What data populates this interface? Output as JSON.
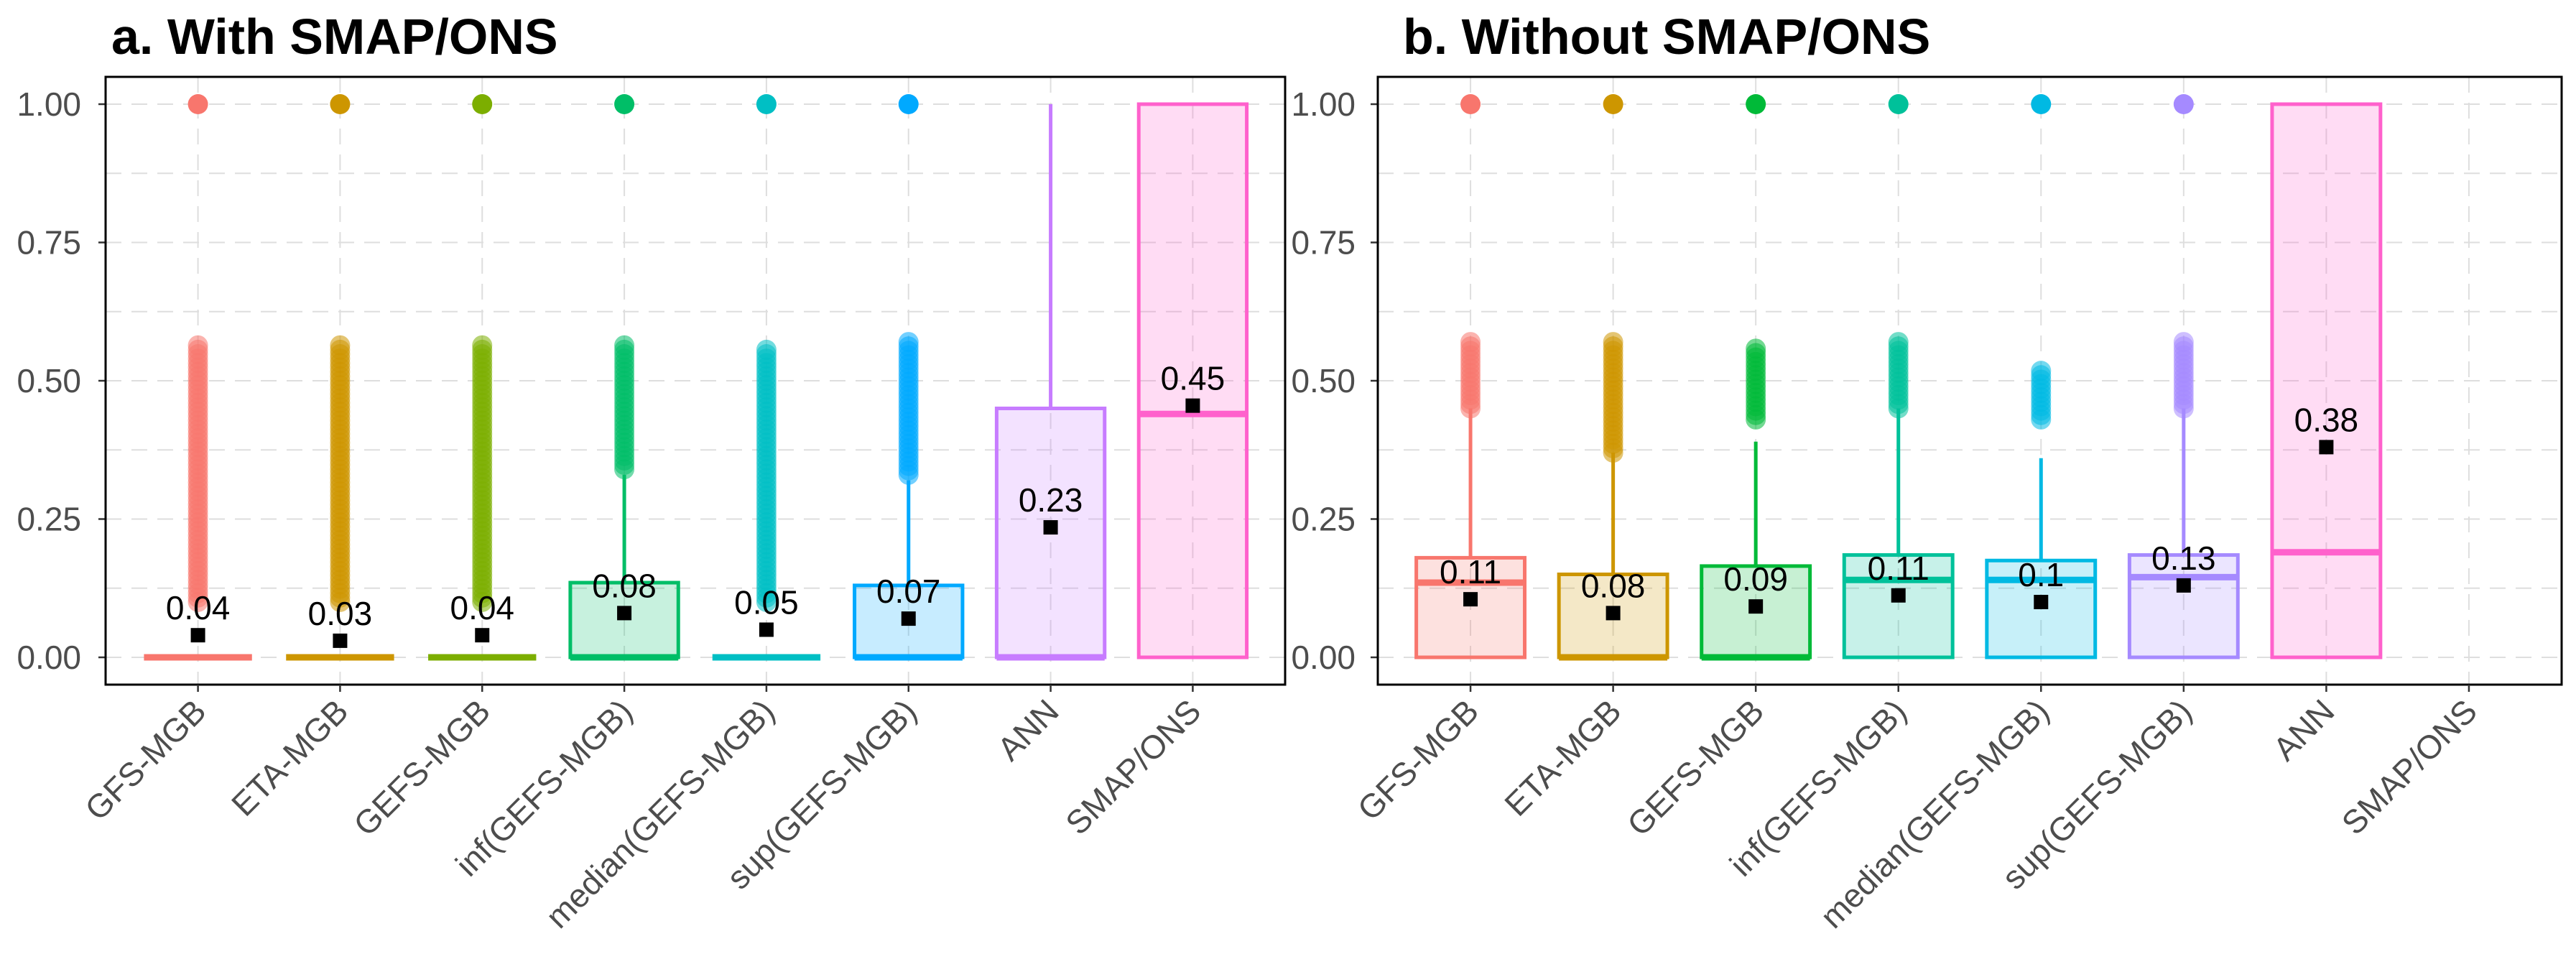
{
  "chart_data": [
    {
      "type": "box",
      "title": "a.  With SMAP/ONS",
      "ylim": [
        -0.05,
        1.05
      ],
      "yticks": [
        "0.00",
        "0.25",
        "0.50",
        "0.75",
        "1.00"
      ],
      "grid": true,
      "categories": [
        "GFS-MGB",
        "ETA-MGB",
        "GEFS-MGB",
        "inf(GEFS-MGB)",
        "median(GEFS-MGB)",
        "sup(GEFS-MGB)",
        "ANN",
        "SMAP/ONS"
      ],
      "colors": [
        "#F8766D",
        "#CD9600",
        "#7CAE00",
        "#00BE67",
        "#00BFC4",
        "#00A9FF",
        "#C77CFF",
        "#FF61CC"
      ],
      "boxes": [
        {
          "q1": 0.0,
          "median": 0.0,
          "q3": 0.0,
          "whisker_low": 0.0,
          "whisker_high": 0.0,
          "outliers_low": 0.1,
          "outliers_high": 0.57,
          "outlier_max": 1.0,
          "mean": 0.04,
          "mean_label": "0.04"
        },
        {
          "q1": 0.0,
          "median": 0.0,
          "q3": 0.0,
          "whisker_low": 0.0,
          "whisker_high": 0.0,
          "outliers_low": 0.1,
          "outliers_high": 0.57,
          "outlier_max": 1.0,
          "mean": 0.03,
          "mean_label": "0.03"
        },
        {
          "q1": 0.0,
          "median": 0.0,
          "q3": 0.0,
          "whisker_low": 0.0,
          "whisker_high": 0.0,
          "outliers_low": 0.1,
          "outliers_high": 0.57,
          "outlier_max": 1.0,
          "mean": 0.04,
          "mean_label": "0.04"
        },
        {
          "q1": 0.0,
          "median": 0.0,
          "q3": 0.135,
          "whisker_low": 0.0,
          "whisker_high": 0.33,
          "outliers_low": 0.34,
          "outliers_high": 0.57,
          "outlier_max": 1.0,
          "mean": 0.08,
          "mean_label": "0.08"
        },
        {
          "q1": 0.0,
          "median": 0.0,
          "q3": 0.0,
          "whisker_low": 0.0,
          "whisker_high": 0.0,
          "outliers_low": 0.1,
          "outliers_high": 0.56,
          "outlier_max": 1.0,
          "mean": 0.05,
          "mean_label": "0.05"
        },
        {
          "q1": 0.0,
          "median": 0.0,
          "q3": 0.13,
          "whisker_low": 0.0,
          "whisker_high": 0.32,
          "outliers_low": 0.33,
          "outliers_high": 0.57,
          "outlier_max": 1.0,
          "mean": 0.07,
          "mean_label": "0.07"
        },
        {
          "q1": 0.0,
          "median": 0.0,
          "q3": 0.45,
          "whisker_low": 0.0,
          "whisker_high": 1.0,
          "outliers_low": null,
          "outliers_high": null,
          "outlier_max": null,
          "mean": 0.235,
          "mean_label": "0.23"
        },
        {
          "q1": 0.0,
          "median": 0.44,
          "q3": 1.0,
          "whisker_low": 0.0,
          "whisker_high": 1.0,
          "outliers_low": null,
          "outliers_high": null,
          "outlier_max": null,
          "mean": 0.455,
          "mean_label": "0.45"
        }
      ]
    },
    {
      "type": "box",
      "title": "b.  Without SMAP/ONS",
      "ylim": [
        -0.05,
        1.05
      ],
      "yticks": [
        "0.00",
        "0.25",
        "0.50",
        "0.75",
        "1.00"
      ],
      "grid": true,
      "categories": [
        "GFS-MGB",
        "ETA-MGB",
        "GEFS-MGB",
        "inf(GEFS-MGB)",
        "median(GEFS-MGB)",
        "sup(GEFS-MGB)",
        "ANN",
        "SMAP/ONS"
      ],
      "colors": [
        "#F8766D",
        "#CD9600",
        "#00BA38",
        "#00C19A",
        "#00B9E3",
        "#A58AFF",
        "#FF61CC",
        "#FF61CC"
      ],
      "boxes": [
        {
          "q1": 0.0,
          "median": 0.135,
          "q3": 0.18,
          "whisker_low": 0.0,
          "whisker_high": 0.45,
          "outliers_low": 0.45,
          "outliers_high": 0.57,
          "outlier_max": 1.0,
          "mean": 0.105,
          "mean_label": "0.11"
        },
        {
          "q1": 0.0,
          "median": 0.0,
          "q3": 0.15,
          "whisker_low": 0.0,
          "whisker_high": 0.37,
          "outliers_low": 0.37,
          "outliers_high": 0.57,
          "outlier_max": 1.0,
          "mean": 0.08,
          "mean_label": "0.08"
        },
        {
          "q1": 0.0,
          "median": 0.0,
          "q3": 0.165,
          "whisker_low": 0.0,
          "whisker_high": 0.39,
          "outliers_low": 0.43,
          "outliers_high": 0.56,
          "outlier_max": 1.0,
          "mean": 0.092,
          "mean_label": "0.09"
        },
        {
          "q1": 0.0,
          "median": 0.14,
          "q3": 0.185,
          "whisker_low": 0.0,
          "whisker_high": 0.45,
          "outliers_low": 0.45,
          "outliers_high": 0.57,
          "outlier_max": 1.0,
          "mean": 0.112,
          "mean_label": "0.11"
        },
        {
          "q1": 0.0,
          "median": 0.14,
          "q3": 0.175,
          "whisker_low": 0.0,
          "whisker_high": 0.36,
          "outliers_low": 0.43,
          "outliers_high": 0.52,
          "outlier_max": 1.0,
          "mean": 0.1,
          "mean_label": "0.1"
        },
        {
          "q1": 0.0,
          "median": 0.145,
          "q3": 0.185,
          "whisker_low": 0.0,
          "whisker_high": 0.45,
          "outliers_low": 0.45,
          "outliers_high": 0.57,
          "outlier_max": 1.0,
          "mean": 0.13,
          "mean_label": "0.13"
        },
        {
          "q1": 0.0,
          "median": 0.19,
          "q3": 1.0,
          "whisker_low": 0.0,
          "whisker_high": 1.0,
          "outliers_low": null,
          "outliers_high": null,
          "outlier_max": null,
          "mean": 0.38,
          "mean_label": "0.38"
        },
        null
      ]
    }
  ]
}
